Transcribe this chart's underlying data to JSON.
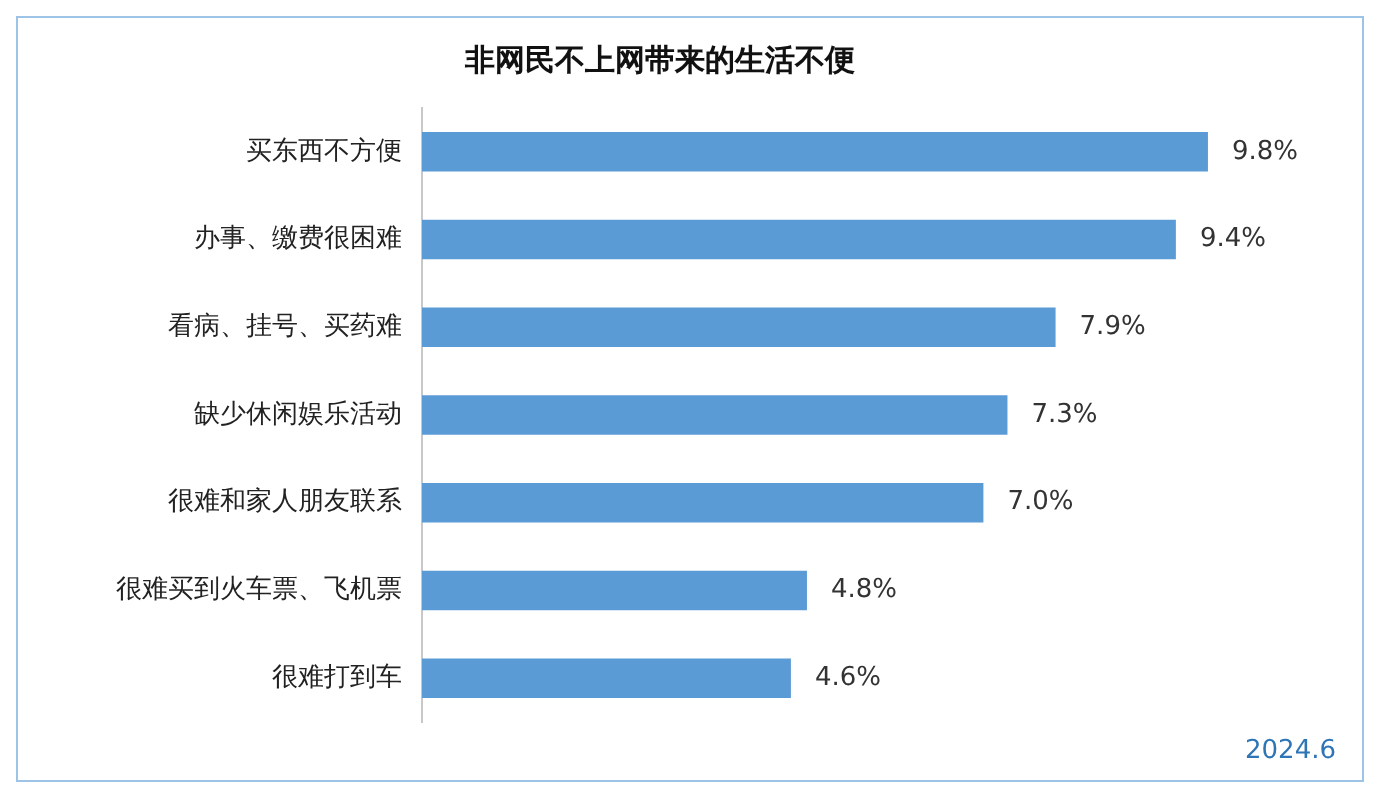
{
  "chart_data": {
    "type": "bar",
    "orientation": "horizontal",
    "title": "非网民不上网带来的生活不便",
    "categories": [
      "买东西不方便",
      "办事、缴费很困难",
      "看病、挂号、买药难",
      "缺少休闲娱乐活动",
      "很难和家人朋友联系",
      "很难买到火车票、飞机票",
      "很难打到车"
    ],
    "values": [
      9.8,
      9.4,
      7.9,
      7.3,
      7.0,
      4.8,
      4.6
    ],
    "value_labels": [
      "9.8%",
      "9.4%",
      "7.9%",
      "7.3%",
      "7.0%",
      "4.8%",
      "4.6%"
    ],
    "color": "#5b9bd5",
    "grid": false,
    "legend": false,
    "tick_labels": "y",
    "annotations": [
      "2024.6"
    ]
  }
}
